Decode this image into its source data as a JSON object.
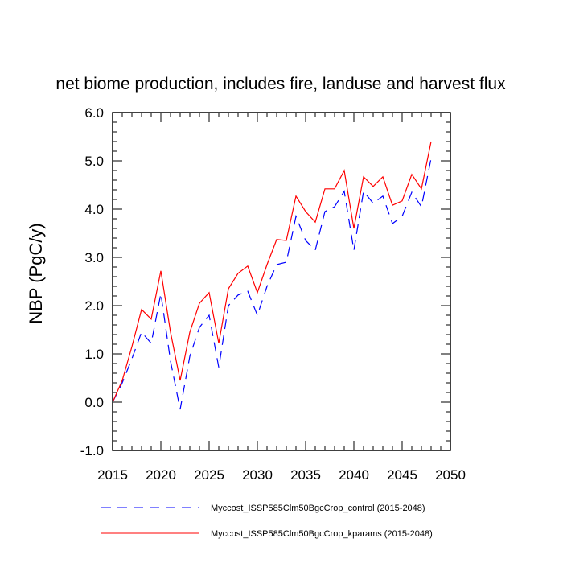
{
  "chart_data": {
    "type": "line",
    "title": "net biome production, includes fire, landuse and harvest flux",
    "xlabel": "",
    "ylabel": "NBP  (PgC/y)",
    "xlim": [
      2015,
      2050
    ],
    "ylim": [
      -1.0,
      6.0
    ],
    "xticks": [
      2015,
      2020,
      2025,
      2030,
      2035,
      2040,
      2045,
      2050
    ],
    "xtick_labels": [
      "2015",
      "2020",
      "2025",
      "2030",
      "2035",
      "2040",
      "2045",
      "2050"
    ],
    "yticks": [
      -1,
      0,
      1,
      2,
      3,
      4,
      5,
      6
    ],
    "ytick_labels": [
      "-1.0",
      "0.0",
      "1.0",
      "2.0",
      "3.0",
      "4.0",
      "5.0",
      "6.0"
    ],
    "grid": false,
    "legend_position": "bottom",
    "x": [
      2015,
      2016,
      2017,
      2018,
      2019,
      2020,
      2021,
      2022,
      2023,
      2024,
      2025,
      2026,
      2027,
      2028,
      2029,
      2030,
      2031,
      2032,
      2033,
      2034,
      2035,
      2036,
      2037,
      2038,
      2039,
      2040,
      2041,
      2042,
      2043,
      2044,
      2045,
      2046,
      2047,
      2048
    ],
    "series": [
      {
        "name": "Myccost_ISSP585Clm50BgcCrop_control (2015-2048)",
        "color": "#0000ff",
        "dash": "dashed",
        "values": [
          0.0,
          0.4,
          0.9,
          1.45,
          1.22,
          2.25,
          0.85,
          -0.15,
          0.95,
          1.55,
          1.8,
          0.72,
          2.0,
          2.22,
          2.3,
          1.8,
          2.4,
          2.85,
          2.9,
          3.85,
          3.35,
          3.15,
          3.95,
          4.05,
          4.37,
          3.15,
          4.37,
          4.12,
          4.27,
          3.7,
          3.85,
          4.35,
          4.05,
          5.05
        ]
      },
      {
        "name": "Myccost_ISSP585Clm50BgcCrop_kparams (2015-2048)",
        "color": "#ff0000",
        "dash": "solid",
        "values": [
          0.0,
          0.45,
          1.15,
          1.92,
          1.72,
          2.72,
          1.45,
          0.45,
          1.45,
          2.05,
          2.27,
          1.22,
          2.35,
          2.67,
          2.82,
          2.27,
          2.85,
          3.37,
          3.35,
          4.27,
          3.95,
          3.73,
          4.42,
          4.42,
          4.8,
          3.6,
          4.67,
          4.47,
          4.67,
          4.08,
          4.17,
          4.72,
          4.42,
          5.4
        ]
      }
    ]
  }
}
